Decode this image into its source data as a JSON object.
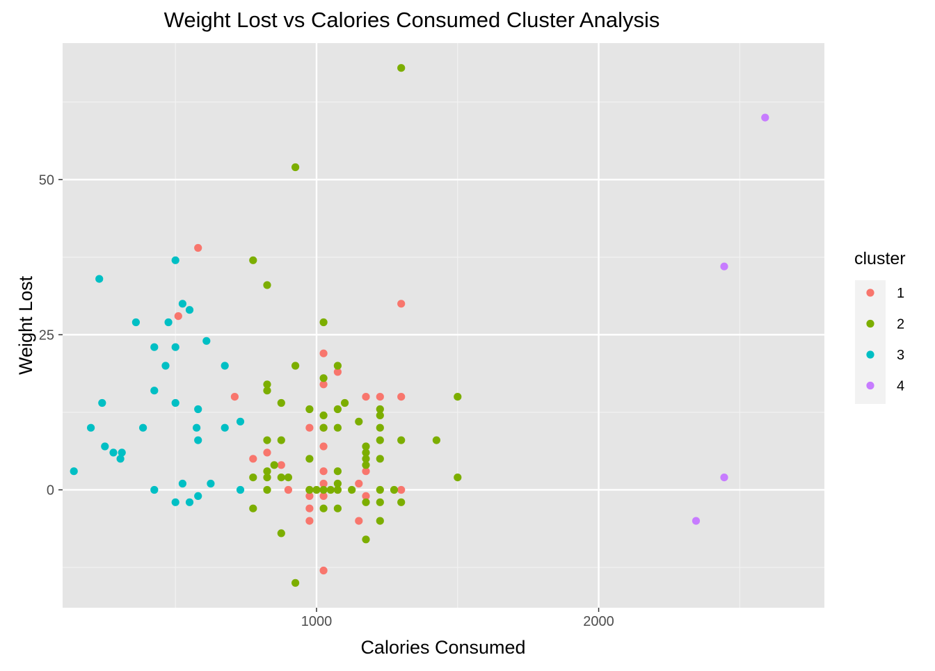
{
  "chart_data": {
    "type": "scatter",
    "title": "Weight Lost vs Calories Consumed Cluster Analysis",
    "xlabel": "Calories Consumed",
    "ylabel": "Weight Lost",
    "xlim": [
      100,
      2800
    ],
    "ylim": [
      -19,
      72
    ],
    "x_major_ticks": [
      1000,
      2000
    ],
    "x_minor_ticks": [
      500,
      1500,
      2500
    ],
    "y_major_ticks": [
      0,
      25,
      50
    ],
    "y_minor_ticks": [
      -12.5,
      12.5,
      37.5,
      62.5
    ],
    "grid": true,
    "background": "#e5e5e5",
    "legend": {
      "title": "cluster",
      "placement": "right"
    },
    "series": [
      {
        "name": "1",
        "color": "#f8766d",
        "points": [
          [
            580,
            39
          ],
          [
            510,
            28
          ],
          [
            710,
            15
          ],
          [
            1300,
            30
          ],
          [
            1300,
            15
          ],
          [
            1025,
            22
          ],
          [
            1025,
            17
          ],
          [
            1025,
            10
          ],
          [
            1025,
            7
          ],
          [
            1025,
            3
          ],
          [
            1025,
            1
          ],
          [
            1025,
            -1
          ],
          [
            1075,
            19
          ],
          [
            1175,
            15
          ],
          [
            1225,
            15
          ],
          [
            1175,
            3
          ],
          [
            1175,
            -1
          ],
          [
            975,
            10
          ],
          [
            975,
            0
          ],
          [
            975,
            -1
          ],
          [
            975,
            -3
          ],
          [
            975,
            -5
          ],
          [
            900,
            0
          ],
          [
            875,
            4
          ],
          [
            825,
            6
          ],
          [
            775,
            5
          ],
          [
            1025,
            -13
          ],
          [
            1150,
            1
          ],
          [
            1150,
            -5
          ],
          [
            1300,
            0
          ],
          [
            1075,
            0
          ]
        ]
      },
      {
        "name": "2",
        "color": "#7cae00",
        "points": [
          [
            1300,
            68
          ],
          [
            925,
            52
          ],
          [
            775,
            37
          ],
          [
            825,
            33
          ],
          [
            1025,
            27
          ],
          [
            925,
            20
          ],
          [
            1075,
            20
          ],
          [
            1025,
            18
          ],
          [
            825,
            17
          ],
          [
            825,
            16
          ],
          [
            875,
            14
          ],
          [
            1100,
            14
          ],
          [
            975,
            13
          ],
          [
            1075,
            13
          ],
          [
            1225,
            13
          ],
          [
            1500,
            15
          ],
          [
            1025,
            12
          ],
          [
            1225,
            12
          ],
          [
            1150,
            11
          ],
          [
            1025,
            10
          ],
          [
            1075,
            10
          ],
          [
            1225,
            10
          ],
          [
            825,
            8
          ],
          [
            875,
            8
          ],
          [
            1225,
            8
          ],
          [
            1300,
            8
          ],
          [
            1425,
            8
          ],
          [
            1175,
            7
          ],
          [
            1175,
            6
          ],
          [
            975,
            5
          ],
          [
            1175,
            5
          ],
          [
            1225,
            5
          ],
          [
            850,
            4
          ],
          [
            1175,
            4
          ],
          [
            825,
            3
          ],
          [
            1075,
            3
          ],
          [
            825,
            2
          ],
          [
            775,
            2
          ],
          [
            875,
            2
          ],
          [
            900,
            2
          ],
          [
            1500,
            2
          ],
          [
            1075,
            1
          ],
          [
            825,
            0
          ],
          [
            975,
            0
          ],
          [
            1000,
            0
          ],
          [
            1025,
            0
          ],
          [
            1050,
            0
          ],
          [
            1075,
            0
          ],
          [
            1125,
            0
          ],
          [
            1225,
            0
          ],
          [
            1275,
            0
          ],
          [
            1175,
            -2
          ],
          [
            1225,
            -2
          ],
          [
            1300,
            -2
          ],
          [
            1025,
            -3
          ],
          [
            1075,
            -3
          ],
          [
            775,
            -3
          ],
          [
            1225,
            -5
          ],
          [
            875,
            -7
          ],
          [
            1175,
            -8
          ],
          [
            925,
            -15
          ]
        ]
      },
      {
        "name": "3",
        "color": "#00bfc4",
        "points": [
          [
            500,
            37
          ],
          [
            230,
            34
          ],
          [
            525,
            30
          ],
          [
            550,
            29
          ],
          [
            360,
            27
          ],
          [
            475,
            27
          ],
          [
            610,
            24
          ],
          [
            425,
            23
          ],
          [
            500,
            23
          ],
          [
            675,
            20
          ],
          [
            465,
            20
          ],
          [
            425,
            16
          ],
          [
            240,
            14
          ],
          [
            500,
            14
          ],
          [
            580,
            13
          ],
          [
            200,
            10
          ],
          [
            385,
            10
          ],
          [
            575,
            10
          ],
          [
            675,
            10
          ],
          [
            730,
            11
          ],
          [
            580,
            8
          ],
          [
            250,
            7
          ],
          [
            280,
            6
          ],
          [
            310,
            6
          ],
          [
            305,
            5
          ],
          [
            140,
            3
          ],
          [
            525,
            1
          ],
          [
            625,
            1
          ],
          [
            425,
            0
          ],
          [
            730,
            0
          ],
          [
            580,
            -1
          ],
          [
            500,
            -2
          ],
          [
            550,
            -2
          ]
        ]
      },
      {
        "name": "4",
        "color": "#c77cff",
        "points": [
          [
            2590,
            60
          ],
          [
            2445,
            36
          ],
          [
            2445,
            2
          ],
          [
            2345,
            -5
          ]
        ]
      }
    ]
  }
}
